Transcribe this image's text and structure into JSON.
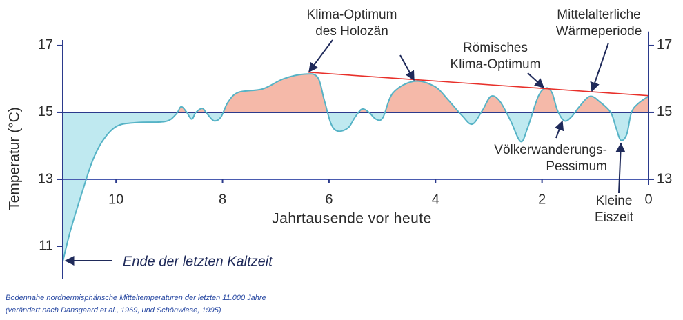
{
  "chart_data": {
    "type": "area",
    "y_label": "Temperatur (°C)",
    "x_label": "Jahrtausende vor heute",
    "xlim": [
      11,
      0
    ],
    "xticks": [
      10,
      8,
      6,
      4,
      2,
      0
    ],
    "ylim": [
      10.2,
      17.5
    ],
    "yticks": [
      11,
      13,
      15,
      17
    ],
    "y2lim": [
      10.2,
      17.5
    ],
    "y2ticks": [
      13,
      15,
      17
    ],
    "reference_lines": [
      13,
      15
    ],
    "fill_baseline": 15,
    "fill_above_color": "#f5b9a9",
    "fill_below_color": "#bfe9f0",
    "series": [
      {
        "color": "#56b3c6",
        "x": [
          11.0,
          10.85,
          10.6,
          10.43,
          10.23,
          9.97,
          9.58,
          9.07,
          8.87,
          8.78,
          8.68,
          8.58,
          8.5,
          8.38,
          8.29,
          8.16,
          8.03,
          7.9,
          7.7,
          7.25,
          6.86,
          6.48,
          6.22,
          6.09,
          5.96,
          5.83,
          5.64,
          5.51,
          5.38,
          5.25,
          5.12,
          4.99,
          4.8,
          4.41,
          4.02,
          3.76,
          3.5,
          3.31,
          3.12,
          2.96,
          2.79,
          2.59,
          2.4,
          2.27,
          2.07,
          1.92,
          1.81,
          1.71,
          1.58,
          1.45,
          1.3,
          1.1,
          0.91,
          0.71,
          0.61,
          0.52,
          0.41,
          0.32,
          0.19,
          0.0
        ],
        "values": [
          10.54,
          11.5,
          12.8,
          13.6,
          14.2,
          14.6,
          14.7,
          14.73,
          14.95,
          15.17,
          15.02,
          14.8,
          15.0,
          15.12,
          14.96,
          14.75,
          14.86,
          15.3,
          15.6,
          15.7,
          16.0,
          16.14,
          16.06,
          15.37,
          14.65,
          14.44,
          14.54,
          14.86,
          15.1,
          15.0,
          14.8,
          14.84,
          15.58,
          15.93,
          15.78,
          15.37,
          14.9,
          14.65,
          15.06,
          15.48,
          15.33,
          14.75,
          14.13,
          14.54,
          15.48,
          15.73,
          15.58,
          15.06,
          14.75,
          14.86,
          15.17,
          15.48,
          15.31,
          15.0,
          14.54,
          14.17,
          14.34,
          15.0,
          15.27,
          15.48
        ]
      }
    ],
    "trend": {
      "color": "#e8302a",
      "x": [
        6.4,
        0.0
      ],
      "values": [
        16.2,
        15.5
      ]
    },
    "annotations": [
      {
        "text": [
          "Klima-Optimum",
          "des Holozän"
        ]
      },
      {
        "text": [
          "Römisches",
          "Klima-Optimum"
        ]
      },
      {
        "text": [
          "Mittelalterliche",
          "Wärmeperiode"
        ]
      },
      {
        "text": [
          "Völkerwanderungs-",
          "Pessimum"
        ]
      },
      {
        "text": [
          "Kleine",
          "Eiszeit"
        ]
      },
      {
        "text": [
          "Ende der letzten Kaltzeit"
        ]
      }
    ],
    "caption": [
      "Bodennahe nordhermisphärische Mitteltemperaturen der letzten 11.000 Jahre",
      "(verändert nach Dansgaard et al., 1969, und Schönwiese, 1995)"
    ]
  }
}
